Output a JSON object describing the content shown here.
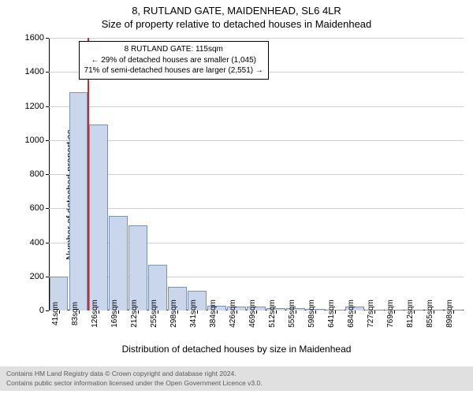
{
  "header": {
    "title_line1": "8, RUTLAND GATE, MAIDENHEAD, SL6 4LR",
    "title_line2": "Size of property relative to detached houses in Maidenhead"
  },
  "chart": {
    "type": "bar",
    "xlabel": "Distribution of detached houses by size in Maidenhead",
    "ylabel": "Number of detached properties",
    "background_color": "#ffffff",
    "grid_color": "#d0d0d0",
    "bar_fill": "#c9d6ec",
    "bar_stroke": "#7f91b5",
    "marker_color": "#d62728",
    "axis_color": "#000000",
    "text_color": "#000000",
    "ylim": [
      0,
      1600
    ],
    "ytick_step": 200,
    "yticks": [
      0,
      200,
      400,
      600,
      800,
      1000,
      1200,
      1400,
      1600
    ],
    "bar_width": 0.95,
    "categories": [
      "41sqm",
      "83sqm",
      "126sqm",
      "169sqm",
      "212sqm",
      "255sqm",
      "298sqm",
      "341sqm",
      "384sqm",
      "426sqm",
      "469sqm",
      "512sqm",
      "555sqm",
      "598sqm",
      "641sqm",
      "684sqm",
      "727sqm",
      "769sqm",
      "812sqm",
      "855sqm",
      "898sqm"
    ],
    "values": [
      200,
      1280,
      1090,
      555,
      500,
      270,
      140,
      115,
      30,
      25,
      25,
      15,
      15,
      8,
      5,
      22,
      5,
      2,
      2,
      0,
      0
    ],
    "marker_after_index": 1,
    "info_box": {
      "line1": "8 RUTLAND GATE: 115sqm",
      "line2": "← 29% of detached houses are smaller (1,045)",
      "line3": "71% of semi-detached houses are larger (2,551) →",
      "border_color": "#000000",
      "background": "#ffffff",
      "fontsize": 10,
      "left_bar_index": 1.5,
      "top_value": 1580
    }
  },
  "footer": {
    "line1": "Contains HM Land Registry data © Crown copyright and database right 2024.",
    "line2": "Contains public sector information licensed under the Open Government Licence v3.0.",
    "background": "#e0e0e0",
    "text_color": "#5a5a5a",
    "fontsize": 8.5
  }
}
